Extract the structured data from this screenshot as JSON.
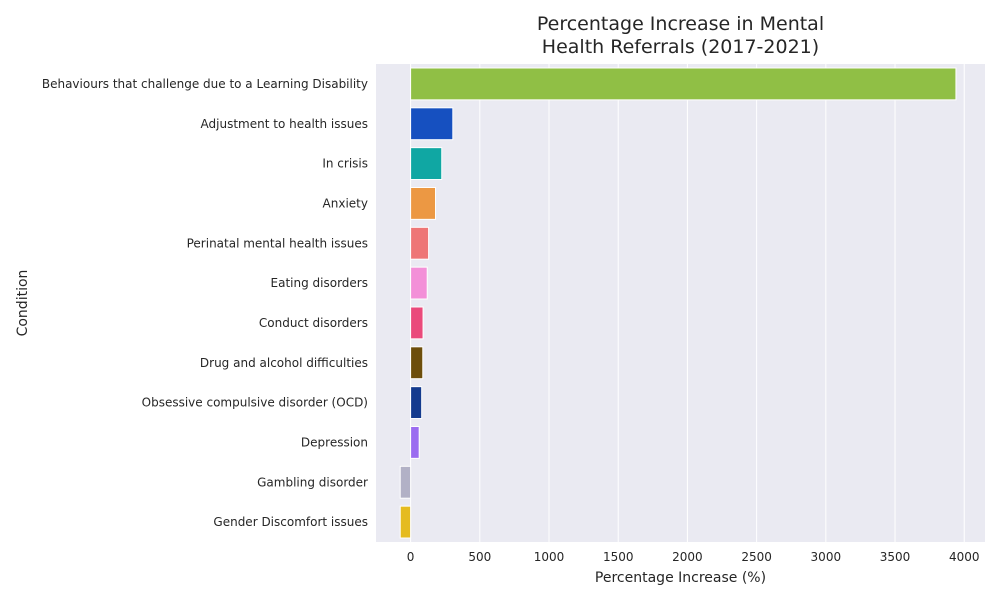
{
  "chart_data": {
    "type": "bar",
    "orientation": "horizontal",
    "title": "Percentage Increase in Mental\nHealth Referrals (2017-2021)",
    "xlabel": "Percentage Increase (%)",
    "ylabel": "Condition",
    "xlim": [
      -250,
      4150
    ],
    "xticks": [
      0,
      500,
      1000,
      1500,
      2000,
      2500,
      3000,
      3500,
      4000
    ],
    "grid": true,
    "background_color": "#eaeaf2",
    "categories": [
      "Behaviours that challenge due to a Learning Disability",
      "Adjustment to health issues",
      "In crisis",
      "Anxiety",
      "Perinatal mental health issues",
      "Eating disorders",
      "Conduct disorders",
      "Drug and alcohol difficulties",
      "Obsessive compulsive disorder (OCD)",
      "Depression",
      "Gambling disorder",
      "Gender Discomfort issues"
    ],
    "values": [
      3940,
      305,
      225,
      180,
      130,
      120,
      90,
      88,
      80,
      62,
      -75,
      -75
    ],
    "colors": [
      "#90bf45",
      "#1650c0",
      "#10a7a3",
      "#ec9843",
      "#ee7676",
      "#f390d8",
      "#ea4a7b",
      "#6d4e0c",
      "#143b8e",
      "#9b6cf0",
      "#b2b1c6",
      "#e5bb1f"
    ]
  }
}
